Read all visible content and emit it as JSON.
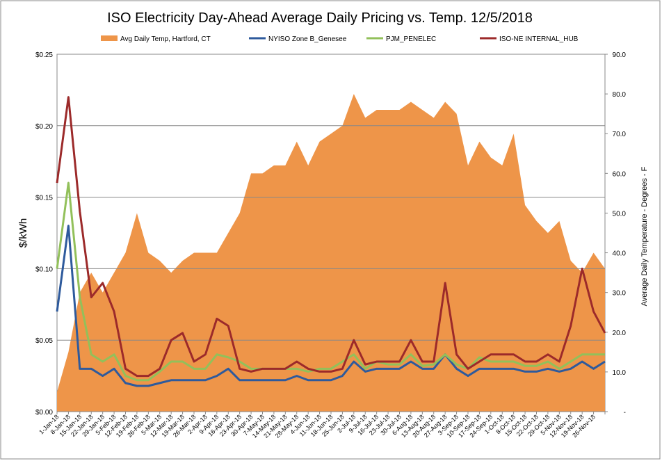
{
  "chart_data": {
    "type": "line",
    "title": "ISO Electricity Day-Ahead Average Daily Pricing vs. Temp. 12/5/2018",
    "y_label": "$/kWh",
    "y2_label": "Average Daily Temperature - Degrees - F",
    "legend": "top",
    "grid": true,
    "categories": [
      "1-Jan-18",
      "8-Jan-18",
      "15-Jan-18",
      "22-Jan-18",
      "29-Jan-18",
      "5-Feb-18",
      "12-Feb-18",
      "19-Feb-18",
      "26-Feb-18",
      "5-Mar-18",
      "12-Mar-18",
      "19-Mar-18",
      "26-Mar-18",
      "2-Apr-18",
      "9-Apr-18",
      "16-Apr-18",
      "23-Apr-18",
      "30-Apr-18",
      "7-May-18",
      "14-May-18",
      "21-May-18",
      "28-May-18",
      "4-Jun-18",
      "11-Jun-18",
      "18-Jun-18",
      "25-Jun-18",
      "2-Jul-18",
      "9-Jul-18",
      "16-Jul-18",
      "23-Jul-18",
      "30-Jul-18",
      "6-Aug-18",
      "13-Aug-18",
      "20-Aug-18",
      "27-Aug-18",
      "3-Sep-18",
      "10-Sep-18",
      "17-Sep-18",
      "24-Sep-18",
      "1-Oct-18",
      "8-Oct-18",
      "15-Oct-18",
      "22-Oct-18",
      "29-Oct-18",
      "5-Nov-18",
      "12-Nov-18",
      "19-Nov-18",
      "26-Nov-18",
      null
    ],
    "ylim": [
      0,
      0.25
    ],
    "yticks": [
      {
        "value": 0,
        "label": "$0.00"
      },
      {
        "value": 0.05,
        "label": "$0.05"
      },
      {
        "value": 0.1,
        "label": "$0.10"
      },
      {
        "value": 0.15,
        "label": "$0.15"
      },
      {
        "value": 0.2,
        "label": "$0.20"
      },
      {
        "value": 0.25,
        "label": "$0.25"
      }
    ],
    "y2lim": [
      0,
      90
    ],
    "y2ticks": [
      {
        "value": 0,
        "label": "-"
      },
      {
        "value": 10,
        "label": "10.0"
      },
      {
        "value": 20,
        "label": "20.0"
      },
      {
        "value": 30,
        "label": "30.0"
      },
      {
        "value": 40,
        "label": "40.0"
      },
      {
        "value": 50,
        "label": "50.0"
      },
      {
        "value": 60,
        "label": "60.0"
      },
      {
        "value": 70,
        "label": "70.0"
      },
      {
        "value": 80,
        "label": "80.0"
      },
      {
        "value": 90,
        "label": "90.0"
      }
    ],
    "series": [
      {
        "name": "Avg Daily Temp, Hartford, CT",
        "color": "#ee9549",
        "kind": "area",
        "axis": "y2",
        "values": [
          5,
          15,
          30,
          35,
          30,
          35,
          40,
          50,
          40,
          38,
          35,
          38,
          40,
          40,
          40,
          45,
          50,
          60,
          60,
          62,
          62,
          68,
          62,
          68,
          70,
          72,
          80,
          74,
          76,
          76,
          76,
          78,
          76,
          74,
          78,
          75,
          62,
          68,
          64,
          62,
          70,
          52,
          48,
          45,
          48,
          38,
          35,
          40,
          36
        ]
      },
      {
        "name": "NYISO Zone B_Genesee",
        "color": "#2e5a9c",
        "values": [
          0.07,
          0.13,
          0.03,
          0.03,
          0.025,
          0.03,
          0.02,
          0.018,
          0.018,
          0.02,
          0.022,
          0.022,
          0.022,
          0.022,
          0.025,
          0.03,
          0.022,
          0.022,
          0.022,
          0.022,
          0.022,
          0.025,
          0.022,
          0.022,
          0.022,
          0.025,
          0.035,
          0.028,
          0.03,
          0.03,
          0.03,
          0.035,
          0.03,
          0.03,
          0.04,
          0.03,
          0.025,
          0.03,
          0.03,
          0.03,
          0.03,
          0.028,
          0.028,
          0.03,
          0.028,
          0.03,
          0.035,
          0.03,
          0.035
        ]
      },
      {
        "name": "PJM_PENELEC",
        "color": "#92c05a",
        "values": [
          0.1,
          0.16,
          0.08,
          0.04,
          0.035,
          0.04,
          0.025,
          0.022,
          0.022,
          0.028,
          0.035,
          0.035,
          0.03,
          0.03,
          0.04,
          0.038,
          0.035,
          0.03,
          0.03,
          0.03,
          0.03,
          0.03,
          0.028,
          0.03,
          0.03,
          0.035,
          0.04,
          0.03,
          0.035,
          0.033,
          0.033,
          0.04,
          0.032,
          0.033,
          0.04,
          0.033,
          0.03,
          0.038,
          0.035,
          0.035,
          0.035,
          0.032,
          0.032,
          0.035,
          0.03,
          0.035,
          0.04,
          0.04,
          0.04
        ]
      },
      {
        "name": "ISO-NE INTERNAL_HUB",
        "color": "#9c2a2a",
        "values": [
          0.16,
          0.22,
          0.14,
          0.08,
          0.09,
          0.07,
          0.03,
          0.025,
          0.025,
          0.03,
          0.05,
          0.055,
          0.035,
          0.04,
          0.065,
          0.06,
          0.03,
          0.028,
          0.03,
          0.03,
          0.03,
          0.035,
          0.03,
          0.028,
          0.028,
          0.03,
          0.05,
          0.033,
          0.035,
          0.035,
          0.035,
          0.05,
          0.035,
          0.035,
          0.09,
          0.04,
          0.03,
          0.035,
          0.04,
          0.04,
          0.04,
          0.035,
          0.035,
          0.04,
          0.035,
          0.06,
          0.1,
          0.07,
          0.055
        ]
      }
    ]
  }
}
